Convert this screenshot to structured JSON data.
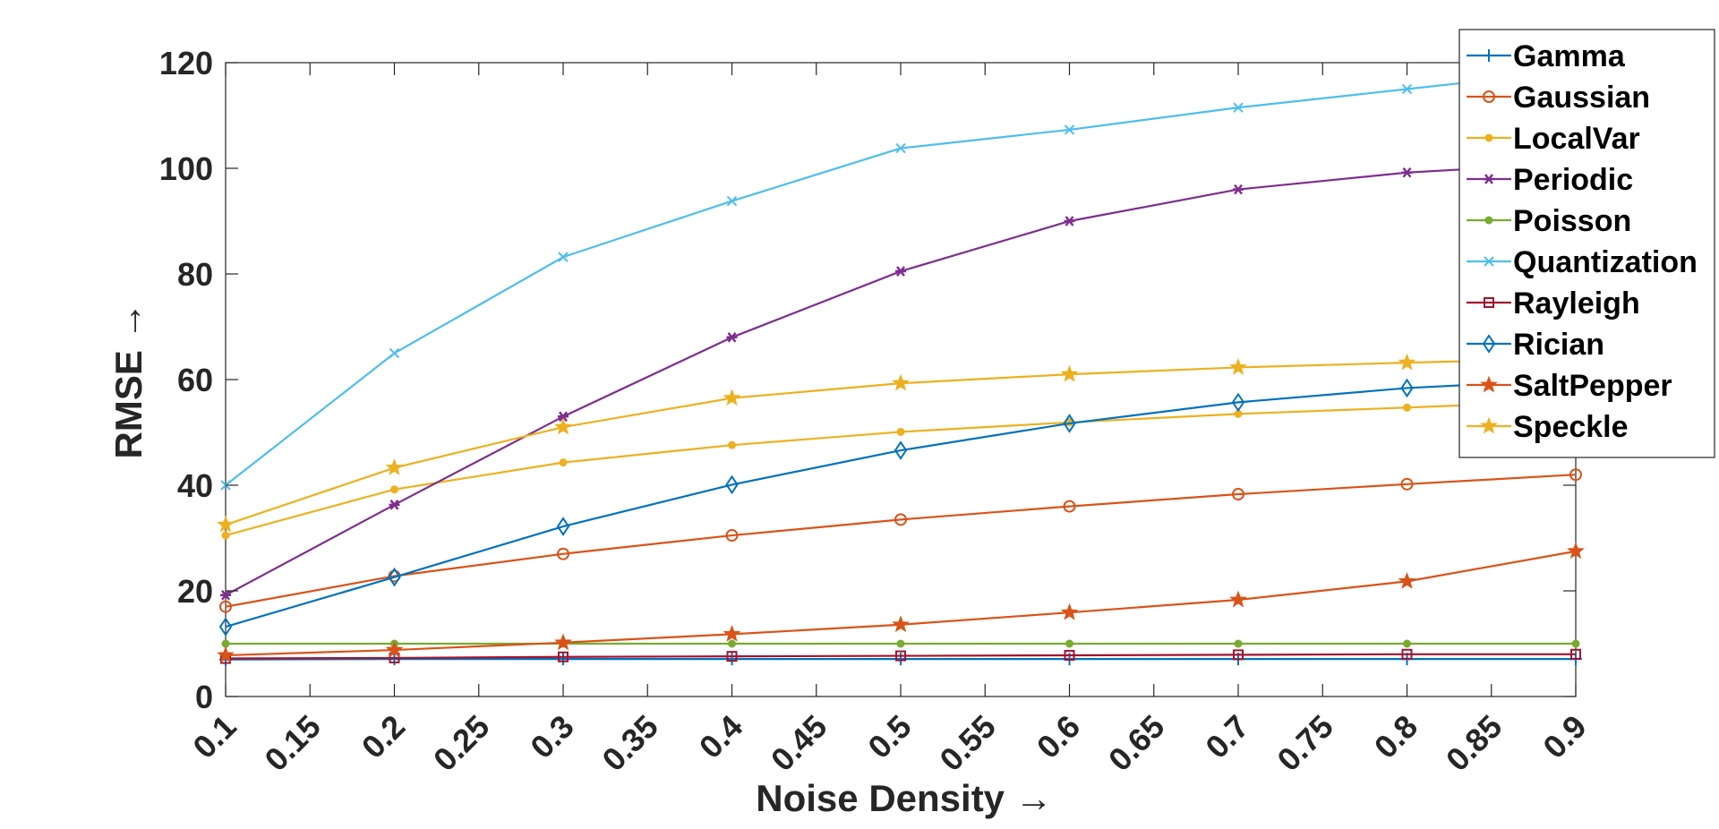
{
  "chart_data": {
    "type": "line",
    "xlabel": "Noise Density →",
    "ylabel": "RMSE →",
    "xlim": [
      0.1,
      0.9
    ],
    "ylim": [
      0,
      120
    ],
    "xticks": [
      "0.1",
      "0.15",
      "0.2",
      "0.25",
      "0.3",
      "0.35",
      "0.4",
      "0.45",
      "0.5",
      "0.55",
      "0.6",
      "0.65",
      "0.7",
      "0.75",
      "0.8",
      "0.85",
      "0.9"
    ],
    "yticks": [
      "0",
      "20",
      "40",
      "60",
      "80",
      "100",
      "120"
    ],
    "grid": false,
    "legend_position": "top-right",
    "x": [
      0.1,
      0.2,
      0.3,
      0.4,
      0.5,
      0.6,
      0.7,
      0.8,
      0.9
    ],
    "series": [
      {
        "name": "Gamma",
        "color": "#0072BD",
        "marker": "plus",
        "values": [
          7.0,
          7.1,
          7.1,
          7.1,
          7.1,
          7.1,
          7.1,
          7.1,
          7.1
        ]
      },
      {
        "name": "Gaussian",
        "color": "#D95319",
        "marker": "circle",
        "values": [
          17.0,
          22.8,
          27.0,
          30.5,
          33.5,
          36.0,
          38.3,
          40.2,
          42.0
        ]
      },
      {
        "name": "LocalVar",
        "color": "#EDB120",
        "marker": "dot",
        "values": [
          30.5,
          39.2,
          44.3,
          47.6,
          50.1,
          51.9,
          53.5,
          54.7,
          56.0
        ]
      },
      {
        "name": "Periodic",
        "color": "#7E2F8E",
        "marker": "asterisk",
        "values": [
          19.2,
          36.3,
          53.0,
          68.0,
          80.5,
          90.0,
          96.0,
          99.2,
          101.0
        ]
      },
      {
        "name": "Poisson",
        "color": "#77AC30",
        "marker": "dot",
        "values": [
          10.0,
          10.0,
          10.0,
          10.0,
          10.0,
          10.0,
          10.0,
          10.0,
          10.0
        ]
      },
      {
        "name": "Quantization",
        "color": "#4DBEEE",
        "marker": "x",
        "values": [
          40.0,
          65.0,
          83.2,
          93.8,
          103.8,
          107.3,
          111.5,
          115.0,
          118.5
        ]
      },
      {
        "name": "Rayleigh",
        "color": "#A2142F",
        "marker": "square",
        "values": [
          7.2,
          7.3,
          7.5,
          7.6,
          7.7,
          7.8,
          7.9,
          8.0,
          8.0
        ]
      },
      {
        "name": "Rician",
        "color": "#0072BD",
        "marker": "diamond",
        "values": [
          13.2,
          22.6,
          32.2,
          40.1,
          46.6,
          51.7,
          55.7,
          58.4,
          60.0
        ]
      },
      {
        "name": "SaltPepper",
        "color": "#D95319",
        "marker": "star",
        "values": [
          7.8,
          8.8,
          10.2,
          11.8,
          13.6,
          15.9,
          18.3,
          21.8,
          27.5
        ]
      },
      {
        "name": "Speckle",
        "color": "#EDB120",
        "marker": "star",
        "values": [
          32.5,
          43.3,
          51.0,
          56.5,
          59.3,
          61.0,
          62.3,
          63.2,
          64.0
        ]
      }
    ]
  }
}
